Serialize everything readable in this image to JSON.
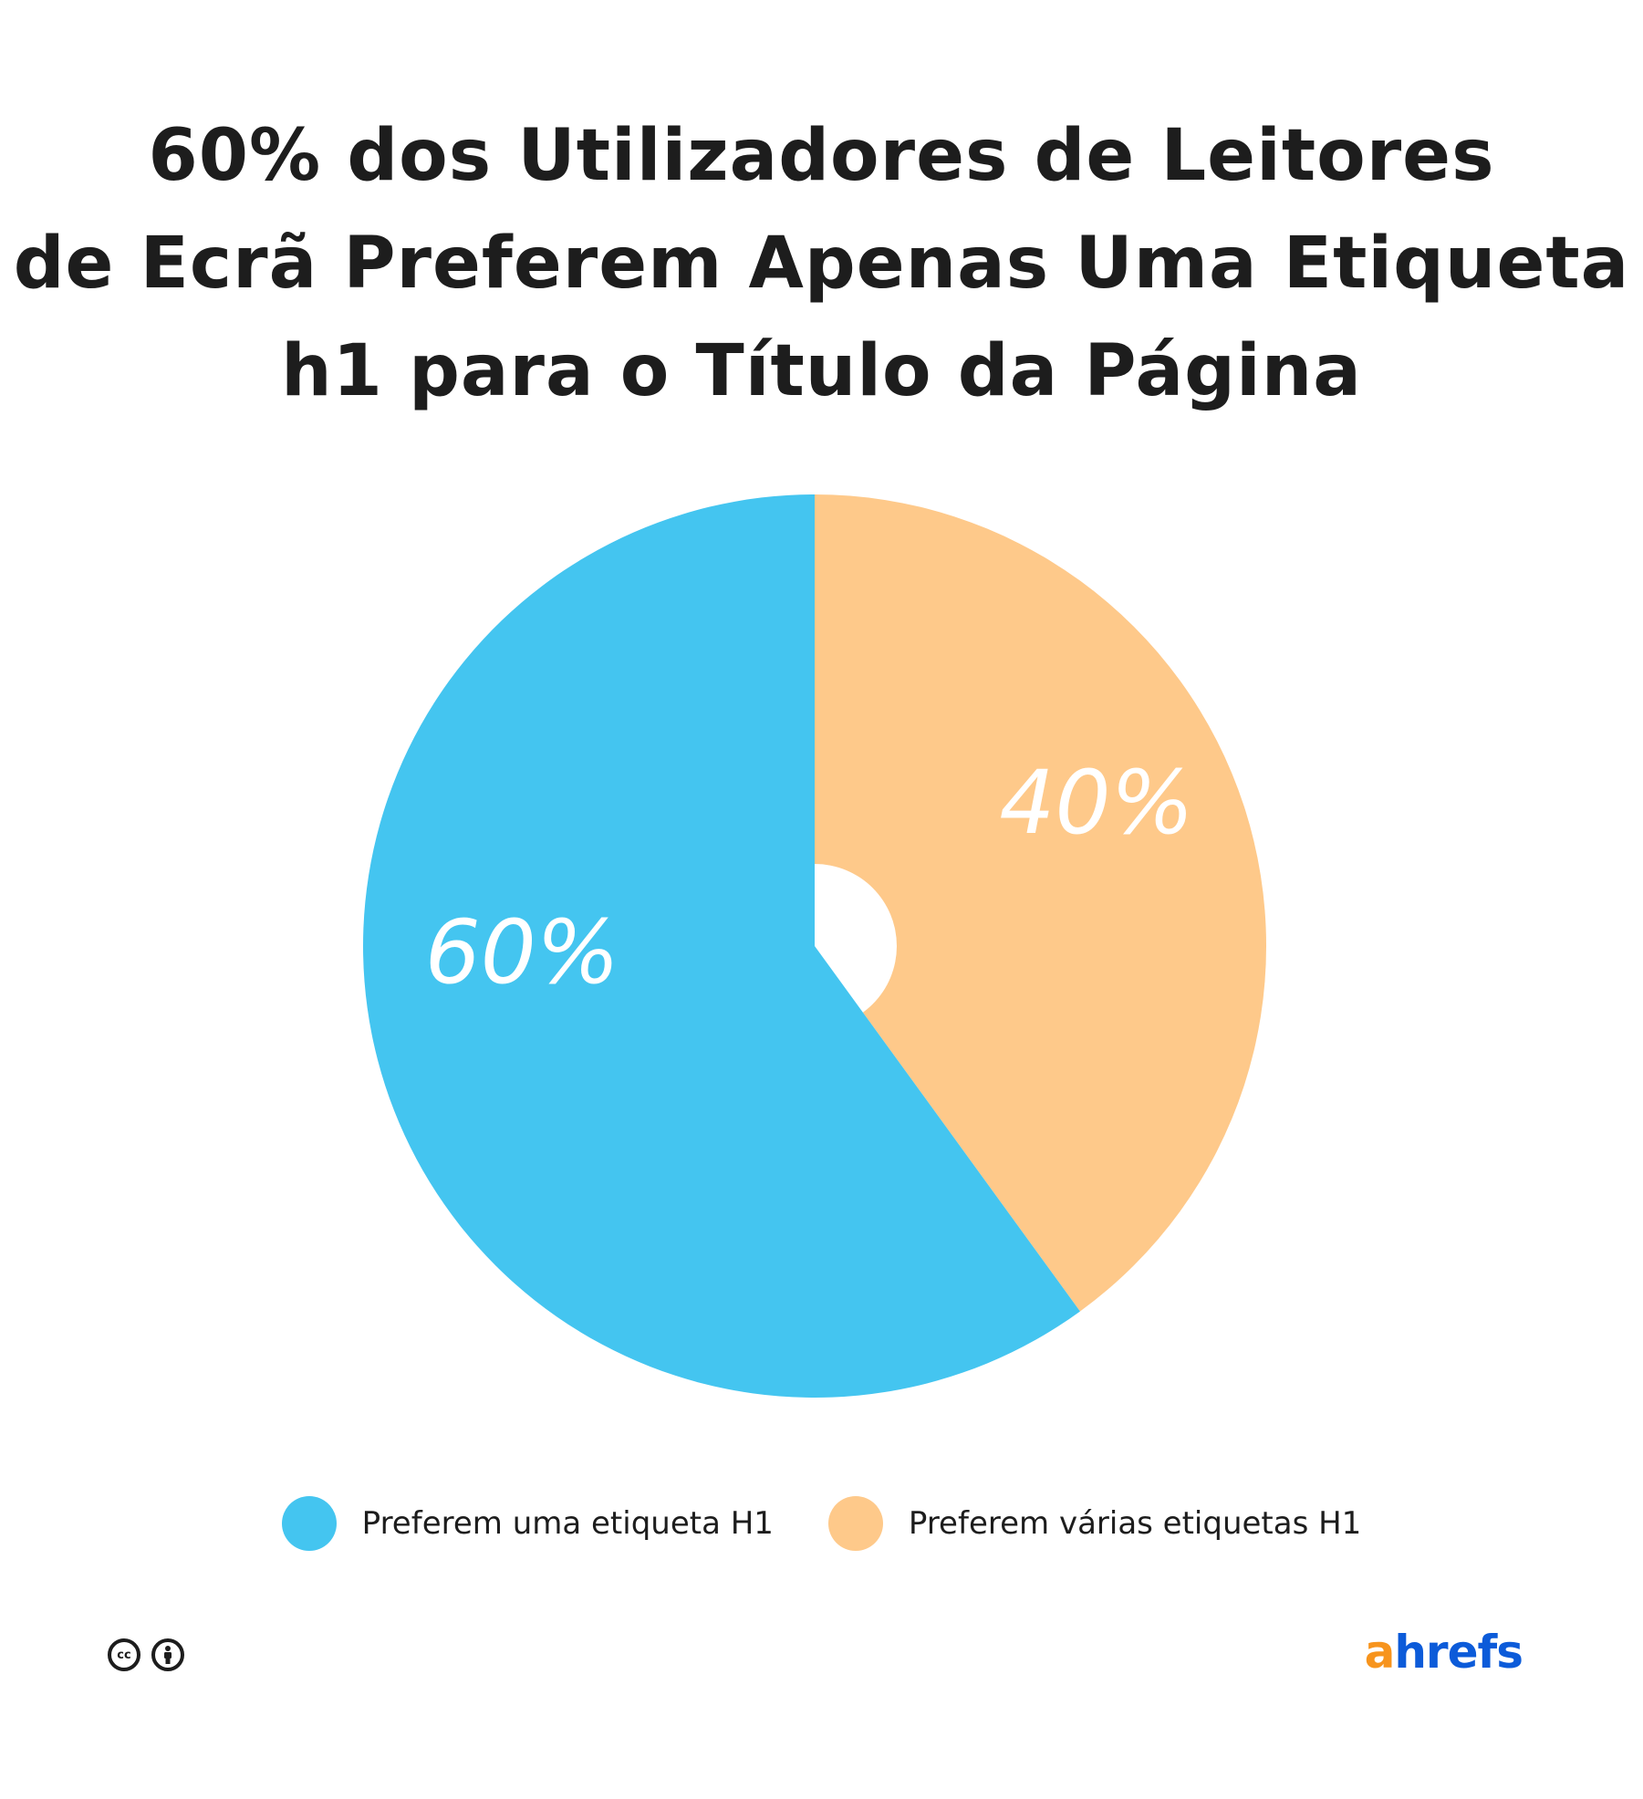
{
  "title": {
    "lines": [
      "60% dos Utilizadores de Leitores",
      "de Ecrã Preferem Apenas Uma Etiqueta",
      "h1 para o Título da Página"
    ]
  },
  "chart_data": {
    "type": "pie",
    "donut": true,
    "title": "60% dos Utilizadores de Leitores de Ecrã Preferem Apenas Uma Etiqueta h1 para o Título da Página",
    "series": [
      {
        "name": "Preferem uma etiqueta H1",
        "value": 60,
        "label": "60%",
        "color": "#44c5f0"
      },
      {
        "name": "Preferem várias etiquetas H1",
        "value": 40,
        "label": "40%",
        "color": "#fec98a"
      }
    ],
    "legend_position": "bottom"
  },
  "footer": {
    "cc_icon": "cc-icon",
    "by_icon": "attribution-icon",
    "cc_text": "cc",
    "logo_a": "a",
    "logo_rest": "hrefs",
    "logo_colors": {
      "a": "#f7941d",
      "rest": "#0c5bd9"
    }
  }
}
